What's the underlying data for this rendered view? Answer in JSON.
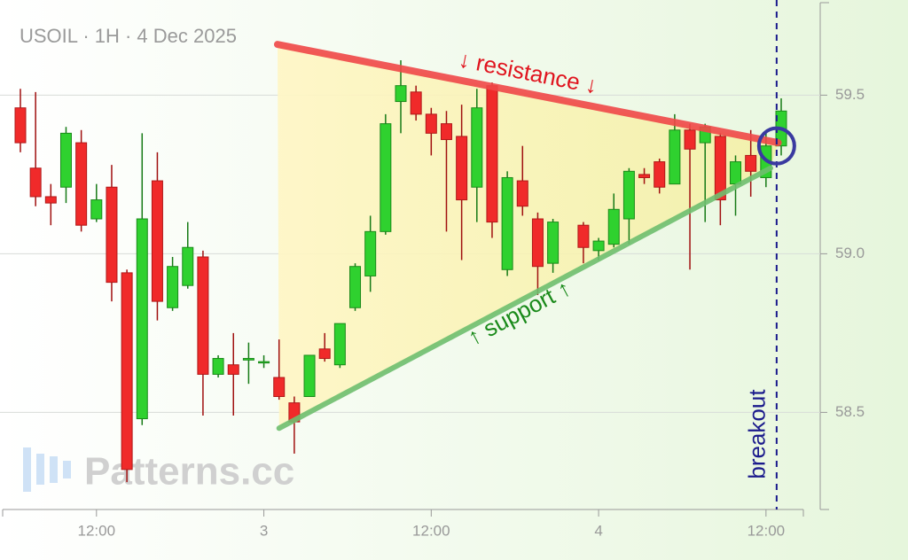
{
  "chart_data": {
    "type": "candlestick",
    "title": "USOIL · 1H · 4 Dec 2025",
    "categories": [
      null,
      null,
      null,
      null,
      null,
      "12:00",
      null,
      null,
      null,
      null,
      null,
      null,
      null,
      null,
      null,
      null,
      "3",
      null,
      null,
      null,
      null,
      null,
      null,
      null,
      null,
      null,
      null,
      "12:00",
      null,
      null,
      null,
      null,
      null,
      null,
      null,
      null,
      null,
      null,
      "4",
      null,
      null,
      null,
      null,
      null,
      null,
      null,
      null,
      null,
      null,
      "12:00",
      null
    ],
    "open": [
      59.46,
      59.27,
      59.18,
      59.21,
      59.35,
      59.11,
      59.21,
      58.94,
      58.48,
      59.23,
      58.83,
      58.9,
      58.99,
      58.62,
      58.65,
      58.665,
      58.66,
      58.61,
      58.53,
      58.55,
      58.7,
      58.65,
      58.83,
      58.93,
      59.07,
      59.48,
      59.51,
      59.44,
      59.41,
      59.37,
      59.21,
      59.53,
      58.95,
      59.23,
      59.11,
      58.97,
      null,
      59.09,
      59.01,
      59.03,
      59.11,
      59.25,
      59.29,
      59.22,
      59.39,
      59.35,
      59.37,
      59.22,
      59.31,
      59.24,
      59.34
    ],
    "high": [
      59.52,
      59.51,
      59.22,
      59.4,
      59.39,
      59.22,
      59.28,
      58.95,
      59.38,
      59.32,
      58.99,
      59.1,
      59.01,
      58.68,
      58.75,
      58.72,
      58.68,
      58.73,
      58.55,
      58.68,
      58.75,
      58.78,
      58.97,
      59.12,
      59.44,
      59.61,
      59.53,
      59.46,
      59.45,
      59.47,
      59.52,
      59.54,
      59.26,
      59.34,
      59.13,
      59.11,
      null,
      59.1,
      59.05,
      59.19,
      59.27,
      59.27,
      59.3,
      59.44,
      59.41,
      59.41,
      59.38,
      59.31,
      59.39,
      59.38,
      59.49
    ],
    "low": [
      59.32,
      59.15,
      59.09,
      59.16,
      59.07,
      59.1,
      58.85,
      58.28,
      58.46,
      58.79,
      58.82,
      58.89,
      58.49,
      58.61,
      58.49,
      58.59,
      58.64,
      58.54,
      58.37,
      58.55,
      58.66,
      58.64,
      58.82,
      58.88,
      59.06,
      59.38,
      59.42,
      59.31,
      59.07,
      58.98,
      59.1,
      59.05,
      58.93,
      59.12,
      58.87,
      58.94,
      null,
      58.97,
      58.98,
      59.02,
      59.03,
      59.22,
      59.19,
      59.22,
      58.95,
      59.1,
      59.09,
      59.12,
      59.18,
      59.21,
      59.31
    ],
    "close": [
      59.35,
      59.18,
      59.16,
      59.38,
      59.09,
      59.17,
      58.91,
      58.32,
      59.11,
      58.85,
      58.96,
      59.02,
      58.62,
      58.67,
      58.62,
      58.67,
      58.66,
      58.55,
      58.47,
      58.68,
      58.67,
      58.78,
      58.96,
      59.07,
      59.41,
      59.53,
      59.44,
      59.38,
      59.36,
      59.17,
      59.46,
      59.1,
      59.24,
      59.15,
      58.96,
      59.1,
      null,
      59.02,
      59.04,
      59.14,
      59.26,
      59.24,
      59.21,
      59.39,
      59.33,
      59.4,
      59.17,
      59.29,
      59.26,
      59.34,
      59.45
    ],
    "up_color": "#2fd12f",
    "down_color": "#f02a2a",
    "ylim": [
      58.2,
      59.8
    ],
    "yticks": [
      59.5,
      {
        "value": 59,
        "label": "59.0"
      },
      58.5
    ],
    "grid": true,
    "annotations": {
      "resistance": {
        "label": "↓ resistance ↓",
        "start": [
          16.9,
          59.66
        ],
        "end": [
          49.8,
          59.35
        ],
        "color": "#f04848",
        "text_color": "#e0141e"
      },
      "support": {
        "label": "↑ support ↑",
        "start": [
          17.0,
          58.45
        ],
        "end": [
          49.3,
          59.27
        ],
        "color": "#6fbf6f",
        "text_color": "#1a8a1a"
      },
      "breakout": {
        "label": "breakout",
        "x": 49.7,
        "color": "#1a1a8c"
      },
      "marker": {
        "x": 49.7,
        "y": 59.34,
        "color": "#3a3aa0"
      }
    }
  },
  "watermark": "Patterns.cc"
}
